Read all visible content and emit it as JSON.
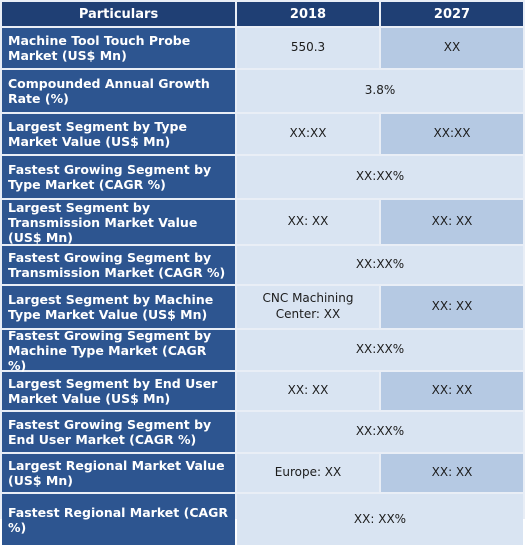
{
  "headers": {
    "c1": "Particulars",
    "c2": "2018",
    "c3": "2027"
  },
  "rows": [
    {
      "label": "Machine Tool Touch Probe Market (US$ Mn)",
      "v2018": "550.3",
      "v2027": "XX"
    },
    {
      "label": "Compounded Annual Growth Rate (%)",
      "merged": "3.8%"
    },
    {
      "label": "Largest Segment by Type Market Value (US$ Mn)",
      "v2018": "XX:XX",
      "v2027": "XX:XX"
    },
    {
      "label": "Fastest Growing Segment by Type Market (CAGR %)",
      "merged": "XX:XX%"
    },
    {
      "label": "Largest Segment by Transmission Market Value (US$ Mn)",
      "v2018": "XX: XX",
      "v2027": "XX: XX"
    },
    {
      "label": "Fastest Growing Segment by Transmission Market (CAGR %)",
      "merged": "XX:XX%"
    },
    {
      "label": "Largest Segment by Machine Type Market Value (US$ Mn)",
      "v2018": "CNC Machining Center: XX",
      "v2027": "XX: XX"
    },
    {
      "label": "Fastest Growing Segment by Machine Type Market (CAGR %)",
      "merged": "XX:XX%"
    },
    {
      "label": "Largest Segment by End User Market Value (US$ Mn)",
      "v2018": "XX: XX",
      "v2027": "XX: XX"
    },
    {
      "label": "Fastest Growing Segment by End User Market (CAGR %)",
      "merged": "XX:XX%"
    },
    {
      "label": "Largest Regional Market Value (US$ Mn)",
      "v2018": "Europe: XX",
      "v2027": "XX: XX"
    },
    {
      "label": "Fastest Regional Market (CAGR %)",
      "merged": "XX: XX%"
    }
  ]
}
